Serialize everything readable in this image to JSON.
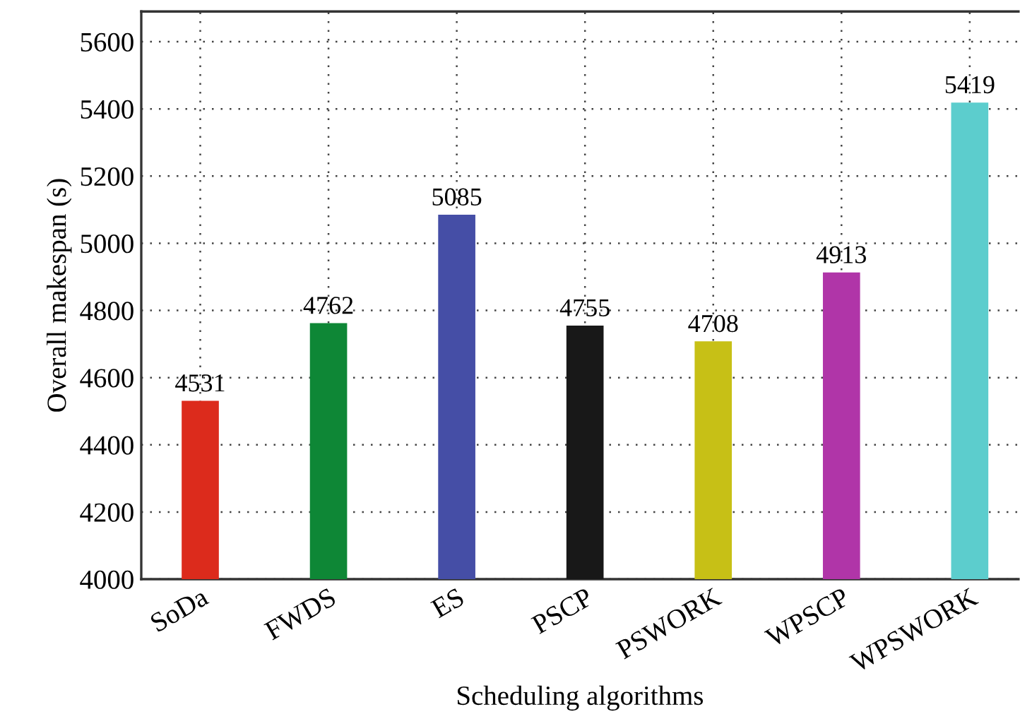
{
  "chart_data": {
    "type": "bar",
    "xlabel": "Scheduling algorithms",
    "ylabel": "Overall makespan (s)",
    "categories": [
      "SoDa",
      "FWDS",
      "ES",
      "PSCP",
      "PSWORK",
      "WPSCP",
      "WPSWORK"
    ],
    "values": [
      4531,
      4762,
      5085,
      4755,
      4708,
      4913,
      5419
    ],
    "colors": [
      "#dc2b1c",
      "#0e8736",
      "#454ea6",
      "#181818",
      "#c7c016",
      "#b035a8",
      "#5ccdcd"
    ],
    "ylim": [
      4000,
      5690
    ],
    "yticks": [
      4000,
      4200,
      4400,
      4600,
      4800,
      5000,
      5200,
      5400,
      5600
    ],
    "grid": true,
    "data_labels": true
  }
}
